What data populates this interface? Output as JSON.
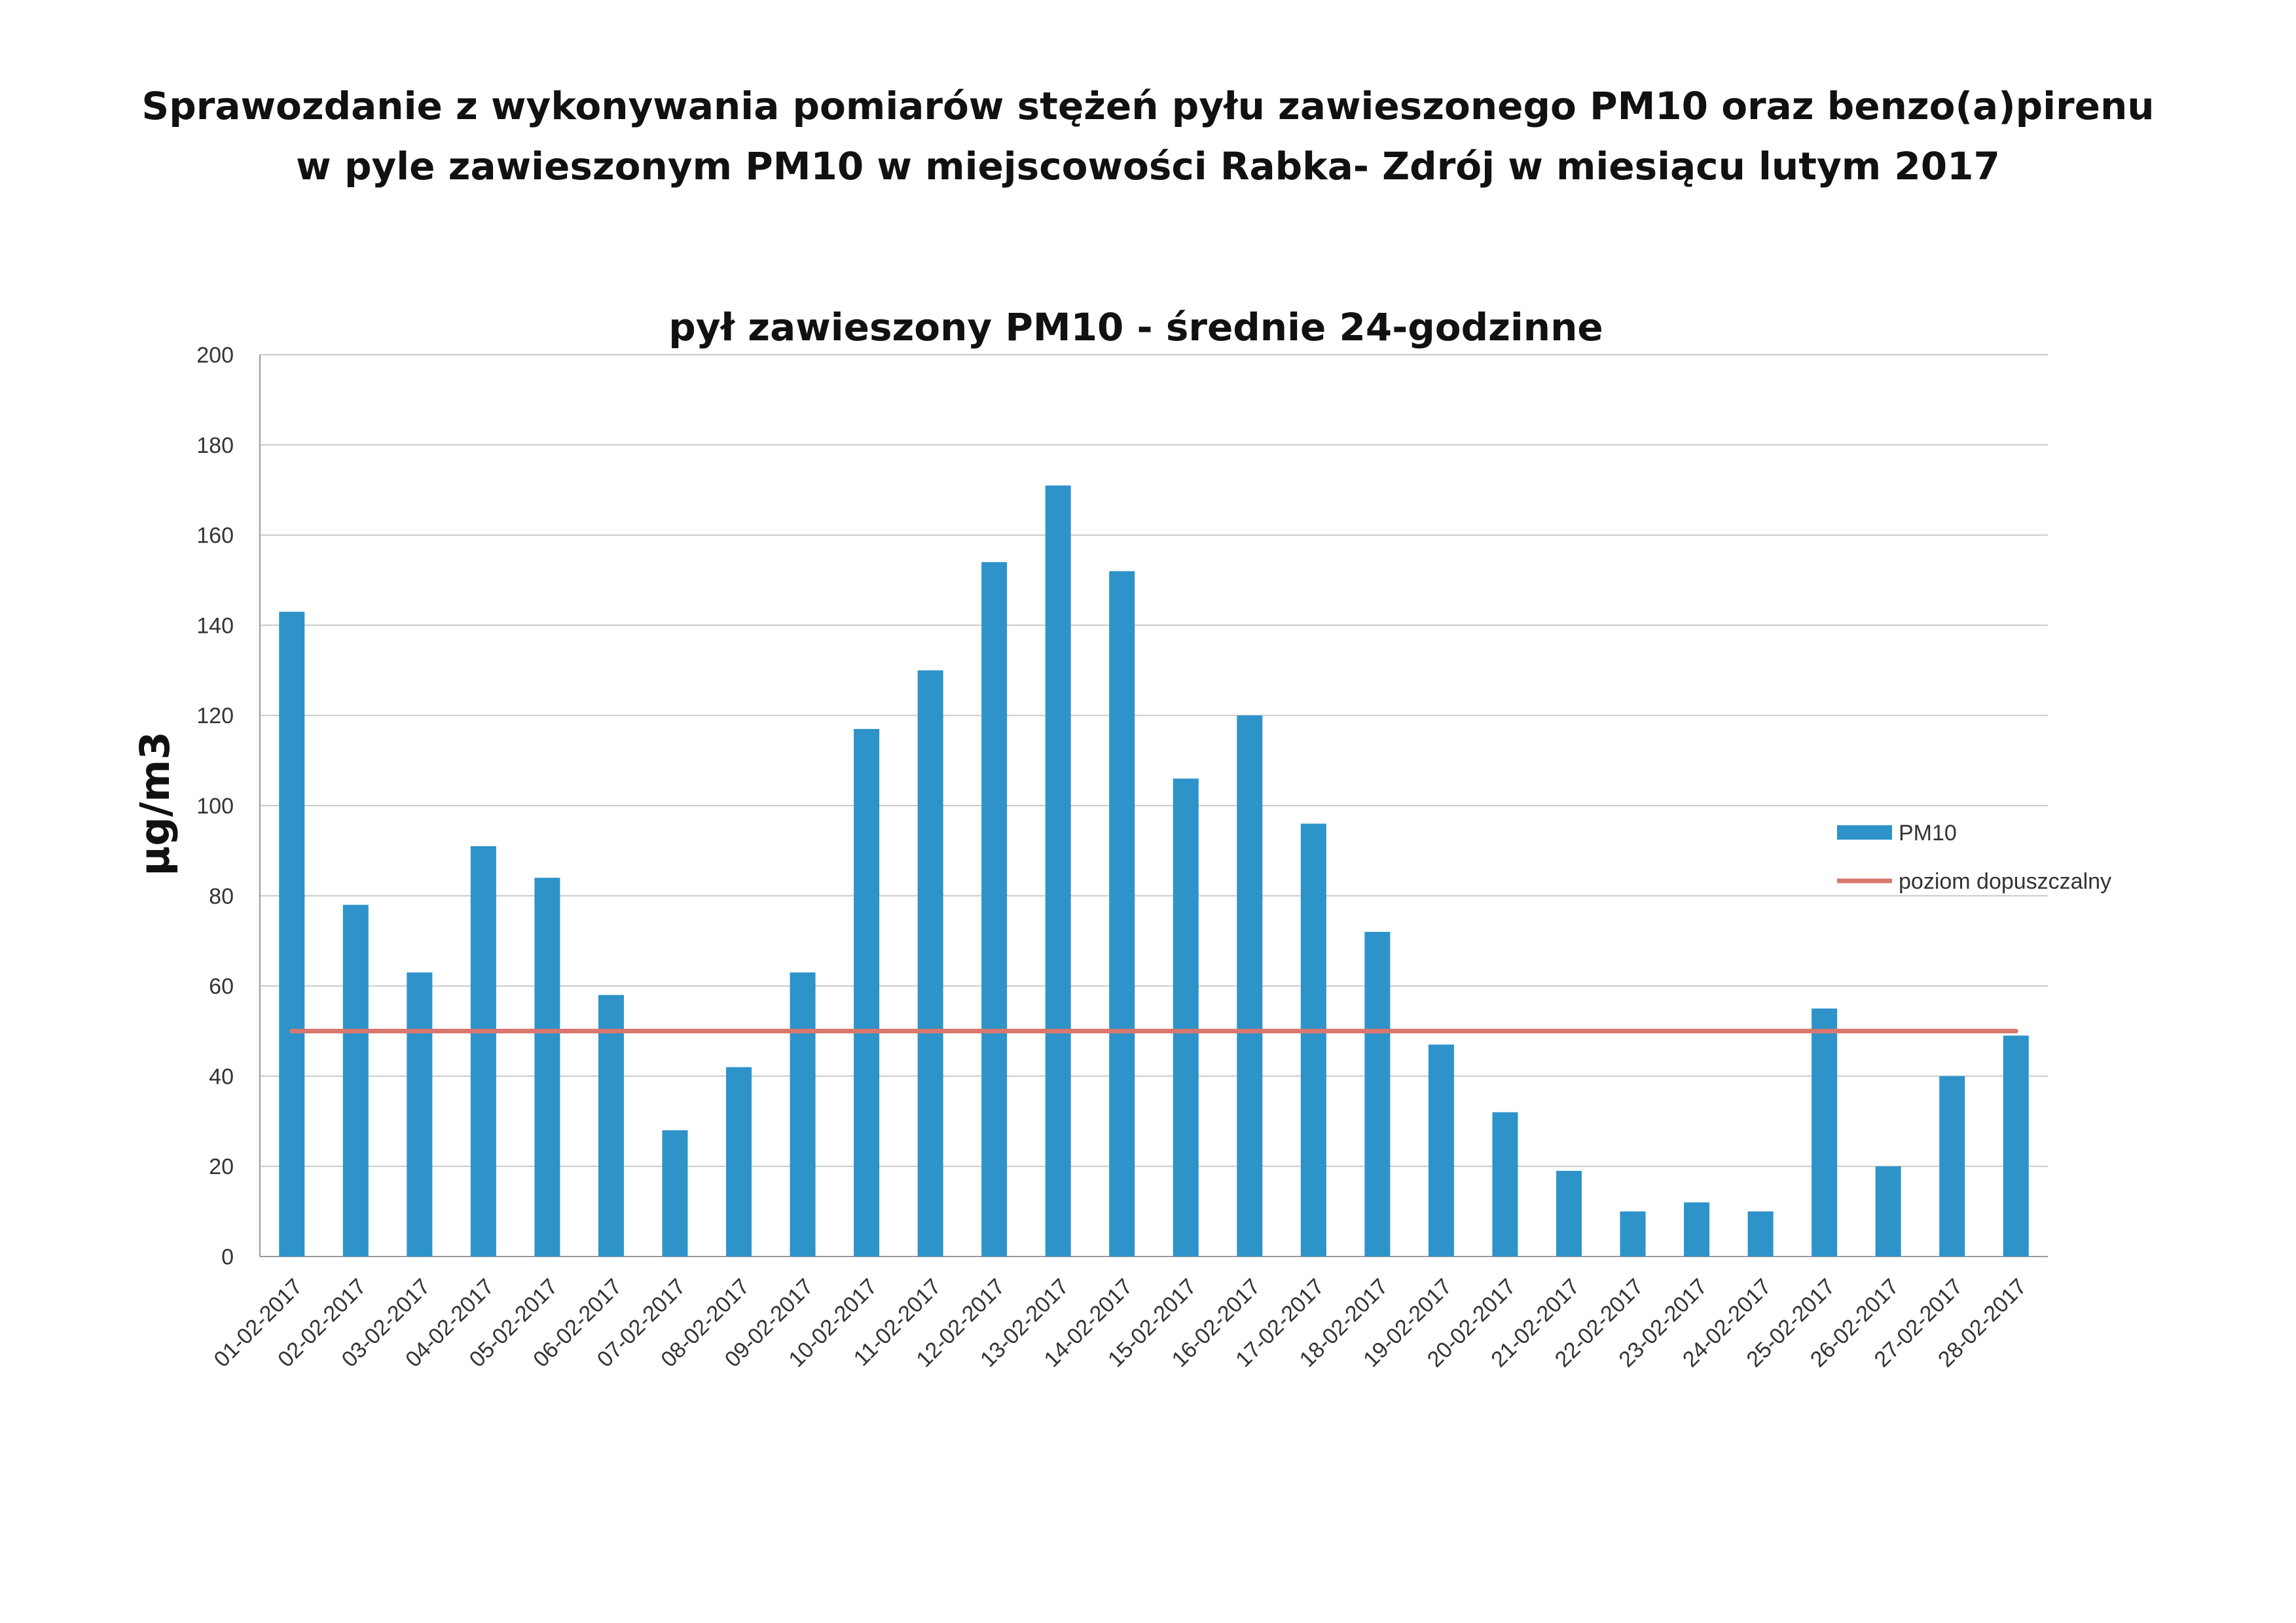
{
  "document": {
    "title_line_1": "Sprawozdanie z wykonywania pomiarów stężeń pyłu zawieszonego PM10 oraz benzo(a)pirenu",
    "title_line_2": "w  pyle zawieszonym PM10 w miejscowości Rabka- Zdrój w miesiącu lutym 2017"
  },
  "chart_data": {
    "type": "bar",
    "title": "pył zawieszony PM10 - średnie 24-godzinne",
    "ylabel": "µg/m3",
    "xlabel": "",
    "ylim": [
      0,
      200
    ],
    "yticks": [
      0,
      20,
      40,
      60,
      80,
      100,
      120,
      140,
      160,
      180,
      200
    ],
    "grid": true,
    "legend_position": "right",
    "categories": [
      "01-02-2017",
      "02-02-2017",
      "03-02-2017",
      "04-02-2017",
      "05-02-2017",
      "06-02-2017",
      "07-02-2017",
      "08-02-2017",
      "09-02-2017",
      "10-02-2017",
      "11-02-2017",
      "12-02-2017",
      "13-02-2017",
      "14-02-2017",
      "15-02-2017",
      "16-02-2017",
      "17-02-2017",
      "18-02-2017",
      "19-02-2017",
      "20-02-2017",
      "21-02-2017",
      "22-02-2017",
      "23-02-2017",
      "24-02-2017",
      "25-02-2017",
      "26-02-2017",
      "27-02-2017",
      "28-02-2017"
    ],
    "series": [
      {
        "name": "PM10",
        "kind": "bar",
        "color": "#2E93C9",
        "values": [
          143,
          78,
          63,
          91,
          84,
          58,
          28,
          42,
          63,
          117,
          130,
          154,
          171,
          152,
          106,
          120,
          96,
          72,
          47,
          32,
          19,
          10,
          12,
          10,
          55,
          20,
          40,
          49
        ]
      },
      {
        "name": "poziom dopuszczalny",
        "kind": "line",
        "color": "#D9776E",
        "values": [
          50,
          50,
          50,
          50,
          50,
          50,
          50,
          50,
          50,
          50,
          50,
          50,
          50,
          50,
          50,
          50,
          50,
          50,
          50,
          50,
          50,
          50,
          50,
          50,
          50,
          50,
          50,
          50
        ]
      }
    ]
  }
}
